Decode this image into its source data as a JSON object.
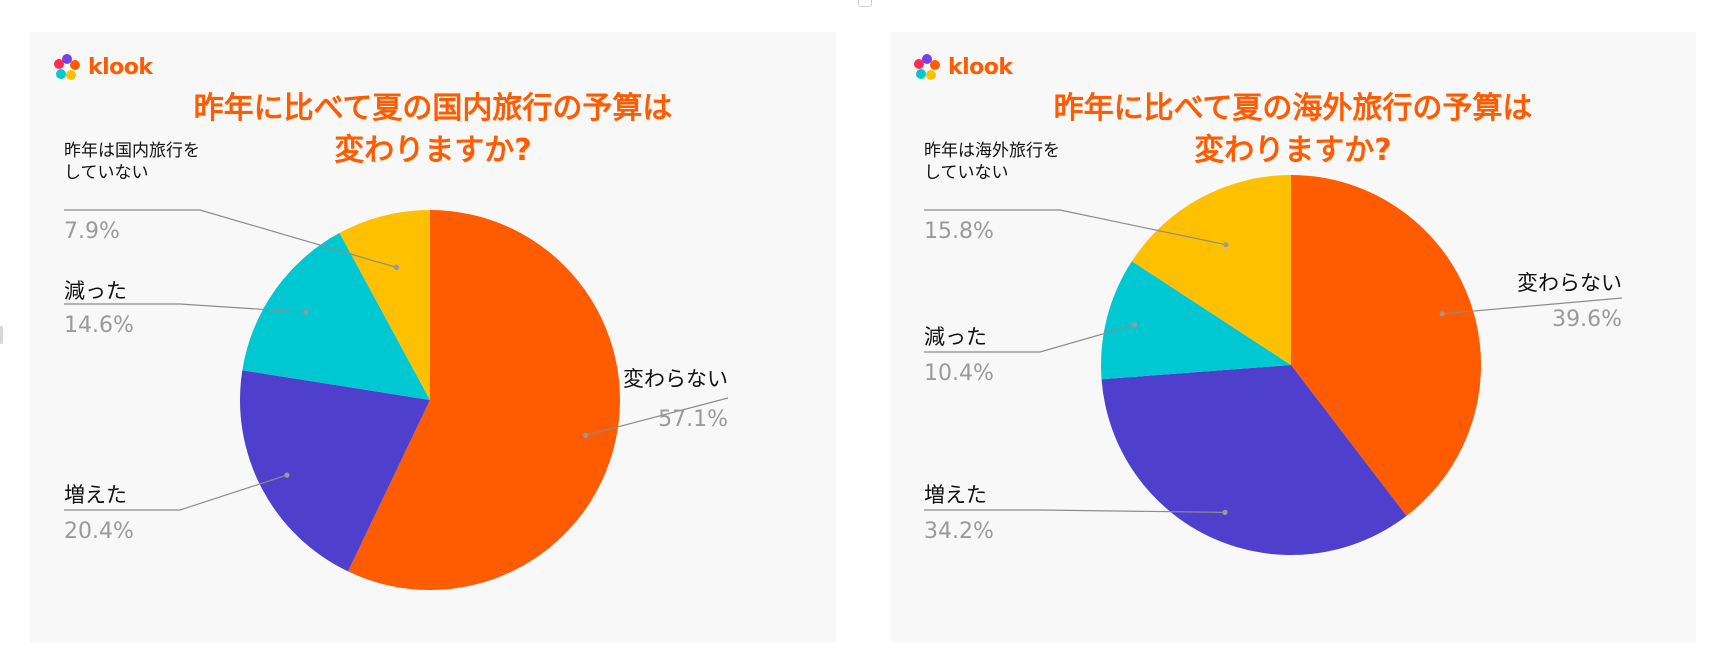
{
  "brand": {
    "name": "klook",
    "color": "#ff5b00"
  },
  "colors": {
    "変わらない": "#ff5b00",
    "増えた": "#4e3fcc",
    "減った": "#00c8d2",
    "昨年は旅行をしていない": "#ffc000"
  },
  "chart_data": [
    {
      "type": "pie",
      "title_lines": [
        "昨年に比べて夏の国内旅行の予算は",
        "変わりますか?"
      ],
      "slices": [
        {
          "label_lines": [
            "変わらない"
          ],
          "value": 57.1,
          "pct": "57.1%",
          "color": "#ff5b00"
        },
        {
          "label_lines": [
            "増えた"
          ],
          "value": 20.4,
          "pct": "20.4%",
          "color": "#4e3fcc"
        },
        {
          "label_lines": [
            "減った"
          ],
          "value": 14.6,
          "pct": "14.6%",
          "color": "#00c8d2"
        },
        {
          "label_lines": [
            "昨年は国内旅行を",
            "していない"
          ],
          "value": 7.9,
          "pct": "7.9%",
          "color": "#ffc000"
        }
      ]
    },
    {
      "type": "pie",
      "title_lines": [
        "昨年に比べて夏の海外旅行の予算は",
        "変わりますか?"
      ],
      "slices": [
        {
          "label_lines": [
            "変わらない"
          ],
          "value": 39.6,
          "pct": "39.6%",
          "color": "#ff5b00"
        },
        {
          "label_lines": [
            "増えた"
          ],
          "value": 34.2,
          "pct": "34.2%",
          "color": "#4e3fcc"
        },
        {
          "label_lines": [
            "減った"
          ],
          "value": 10.4,
          "pct": "10.4%",
          "color": "#00c8d2"
        },
        {
          "label_lines": [
            "昨年は海外旅行を",
            "していない"
          ],
          "value": 15.8,
          "pct": "15.8%",
          "color": "#ffc000"
        }
      ]
    }
  ]
}
